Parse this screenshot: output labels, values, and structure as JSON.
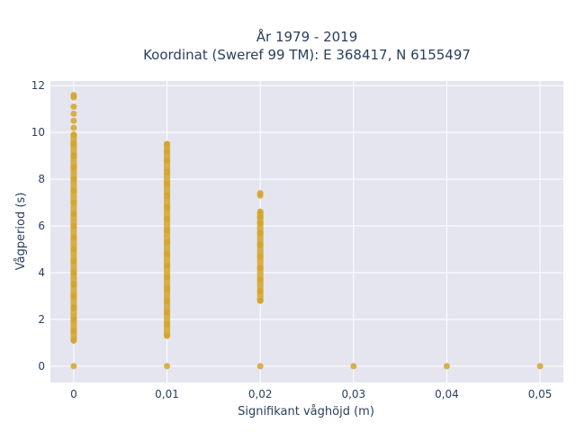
{
  "chart_data": {
    "type": "scatter",
    "title_line1": "År 1979 - 2019",
    "title_line2": "Koordinat (Sweref 99 TM): E 368417, N 6155497",
    "xlabel": "Signifikant våghöjd (m)",
    "ylabel": "Vågperiod (s)",
    "xlim": [
      -0.0025,
      0.0525
    ],
    "ylim": [
      -0.7,
      12.2
    ],
    "x_ticks": [
      0,
      0.01,
      0.02,
      0.03,
      0.04,
      0.05
    ],
    "x_tick_labels": [
      "0",
      "0,01",
      "0,02",
      "0,03",
      "0,04",
      "0,05"
    ],
    "y_ticks": [
      0,
      2,
      4,
      6,
      8,
      10,
      12
    ],
    "y_tick_labels": [
      "0",
      "2",
      "4",
      "6",
      "8",
      "10",
      "12"
    ],
    "grid": true,
    "colors": {
      "marker": "#d4a52a",
      "plot_bg": "#e5e5f0",
      "grid": "#ffffff",
      "text": "#2a3f5f"
    },
    "series": [
      {
        "points": [
          {
            "x": 0,
            "y": 0
          },
          {
            "x": 0,
            "y": 1.1
          },
          {
            "x": 0,
            "y": 1.5
          },
          {
            "x": 0,
            "y": 2.0
          },
          {
            "x": 0,
            "y": 2.5
          },
          {
            "x": 0,
            "y": 3.0
          },
          {
            "x": 0,
            "y": 3.5
          },
          {
            "x": 0,
            "y": 4.0
          },
          {
            "x": 0,
            "y": 4.5
          },
          {
            "x": 0,
            "y": 5.0
          },
          {
            "x": 0,
            "y": 5.5
          },
          {
            "x": 0,
            "y": 6.0
          },
          {
            "x": 0,
            "y": 6.5
          },
          {
            "x": 0,
            "y": 7.0
          },
          {
            "x": 0,
            "y": 7.5
          },
          {
            "x": 0,
            "y": 8.0
          },
          {
            "x": 0,
            "y": 8.5
          },
          {
            "x": 0,
            "y": 9.0
          },
          {
            "x": 0,
            "y": 9.5
          },
          {
            "x": 0,
            "y": 9.9
          },
          {
            "x": 0,
            "y": 10.2
          },
          {
            "x": 0,
            "y": 10.5
          },
          {
            "x": 0,
            "y": 10.8
          },
          {
            "x": 0,
            "y": 11.1
          },
          {
            "x": 0,
            "y": 11.5
          },
          {
            "x": 0,
            "y": 11.6
          },
          {
            "x": 0.01,
            "y": 0
          },
          {
            "x": 0.01,
            "y": 1.3
          },
          {
            "x": 0.01,
            "y": 1.8
          },
          {
            "x": 0.01,
            "y": 2.3
          },
          {
            "x": 0.01,
            "y": 2.8
          },
          {
            "x": 0.01,
            "y": 3.3
          },
          {
            "x": 0.01,
            "y": 3.8
          },
          {
            "x": 0.01,
            "y": 4.3
          },
          {
            "x": 0.01,
            "y": 4.8
          },
          {
            "x": 0.01,
            "y": 5.3
          },
          {
            "x": 0.01,
            "y": 5.8
          },
          {
            "x": 0.01,
            "y": 6.3
          },
          {
            "x": 0.01,
            "y": 6.8
          },
          {
            "x": 0.01,
            "y": 7.3
          },
          {
            "x": 0.01,
            "y": 7.8
          },
          {
            "x": 0.01,
            "y": 8.3
          },
          {
            "x": 0.01,
            "y": 8.8
          },
          {
            "x": 0.01,
            "y": 9.2
          },
          {
            "x": 0.01,
            "y": 9.5
          },
          {
            "x": 0.02,
            "y": 0
          },
          {
            "x": 0.02,
            "y": 2.8
          },
          {
            "x": 0.02,
            "y": 3.2
          },
          {
            "x": 0.02,
            "y": 3.7
          },
          {
            "x": 0.02,
            "y": 4.2
          },
          {
            "x": 0.02,
            "y": 4.7
          },
          {
            "x": 0.02,
            "y": 5.2
          },
          {
            "x": 0.02,
            "y": 5.7
          },
          {
            "x": 0.02,
            "y": 6.1
          },
          {
            "x": 0.02,
            "y": 6.4
          },
          {
            "x": 0.02,
            "y": 6.6
          },
          {
            "x": 0.02,
            "y": 7.3
          },
          {
            "x": 0.02,
            "y": 7.4
          },
          {
            "x": 0.03,
            "y": 0
          },
          {
            "x": 0.04,
            "y": 0
          },
          {
            "x": 0.05,
            "y": 0
          }
        ],
        "bands": [
          {
            "x": 0,
            "y_min": 1.1,
            "y_max": 9.9
          },
          {
            "x": 0.01,
            "y_min": 1.3,
            "y_max": 9.5
          },
          {
            "x": 0.02,
            "y_min": 2.8,
            "y_max": 6.6
          }
        ]
      }
    ]
  }
}
